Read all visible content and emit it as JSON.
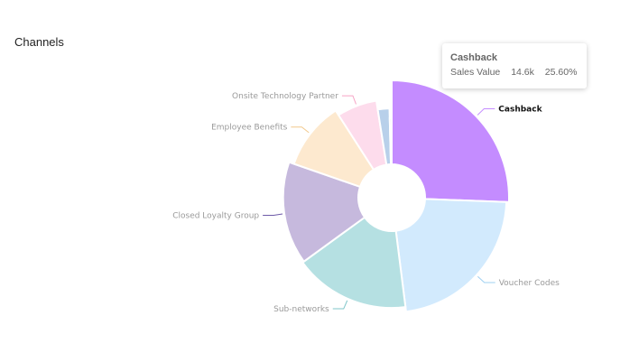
{
  "panel": {
    "title": "Channels"
  },
  "tooltip": {
    "title": "Cashback",
    "metric_label": "Sales Value",
    "value": "14.6k",
    "share": "25.60%"
  },
  "chart_data": {
    "type": "pie",
    "variant": "rose-donut",
    "start_angle_deg": 0,
    "direction": "clockwise",
    "hole_ratio": 0.28,
    "active_slice": "Cashback",
    "slices": [
      {
        "label": "Cashback",
        "share": 25.6,
        "color": "#c48cff"
      },
      {
        "label": "Voucher Codes",
        "share": 22.4,
        "color": "#d2eafd"
      },
      {
        "label": "Sub-networks",
        "share": 17.0,
        "color": "#b5e0e2"
      },
      {
        "label": "Closed Loyalty Group",
        "share": 15.3,
        "color": "#c6b9dd"
      },
      {
        "label": "Employee Benefits",
        "share": 10.6,
        "color": "#fde9cf"
      },
      {
        "label": "Onsite Technology Partner",
        "share": 6.6,
        "color": "#fddcec"
      },
      {
        "label": "",
        "share": 2.1,
        "color": "#b8d0ea"
      },
      {
        "label": "",
        "share": 0.4,
        "color": "#e6e8ee"
      }
    ],
    "leader_colors": [
      "#c48cff",
      "#9fd0f2",
      "#7fc6ca",
      "#6e5aa8",
      "#f2c98c",
      "#f6a3c5",
      "#b8d0ea",
      "#dddddd"
    ]
  }
}
